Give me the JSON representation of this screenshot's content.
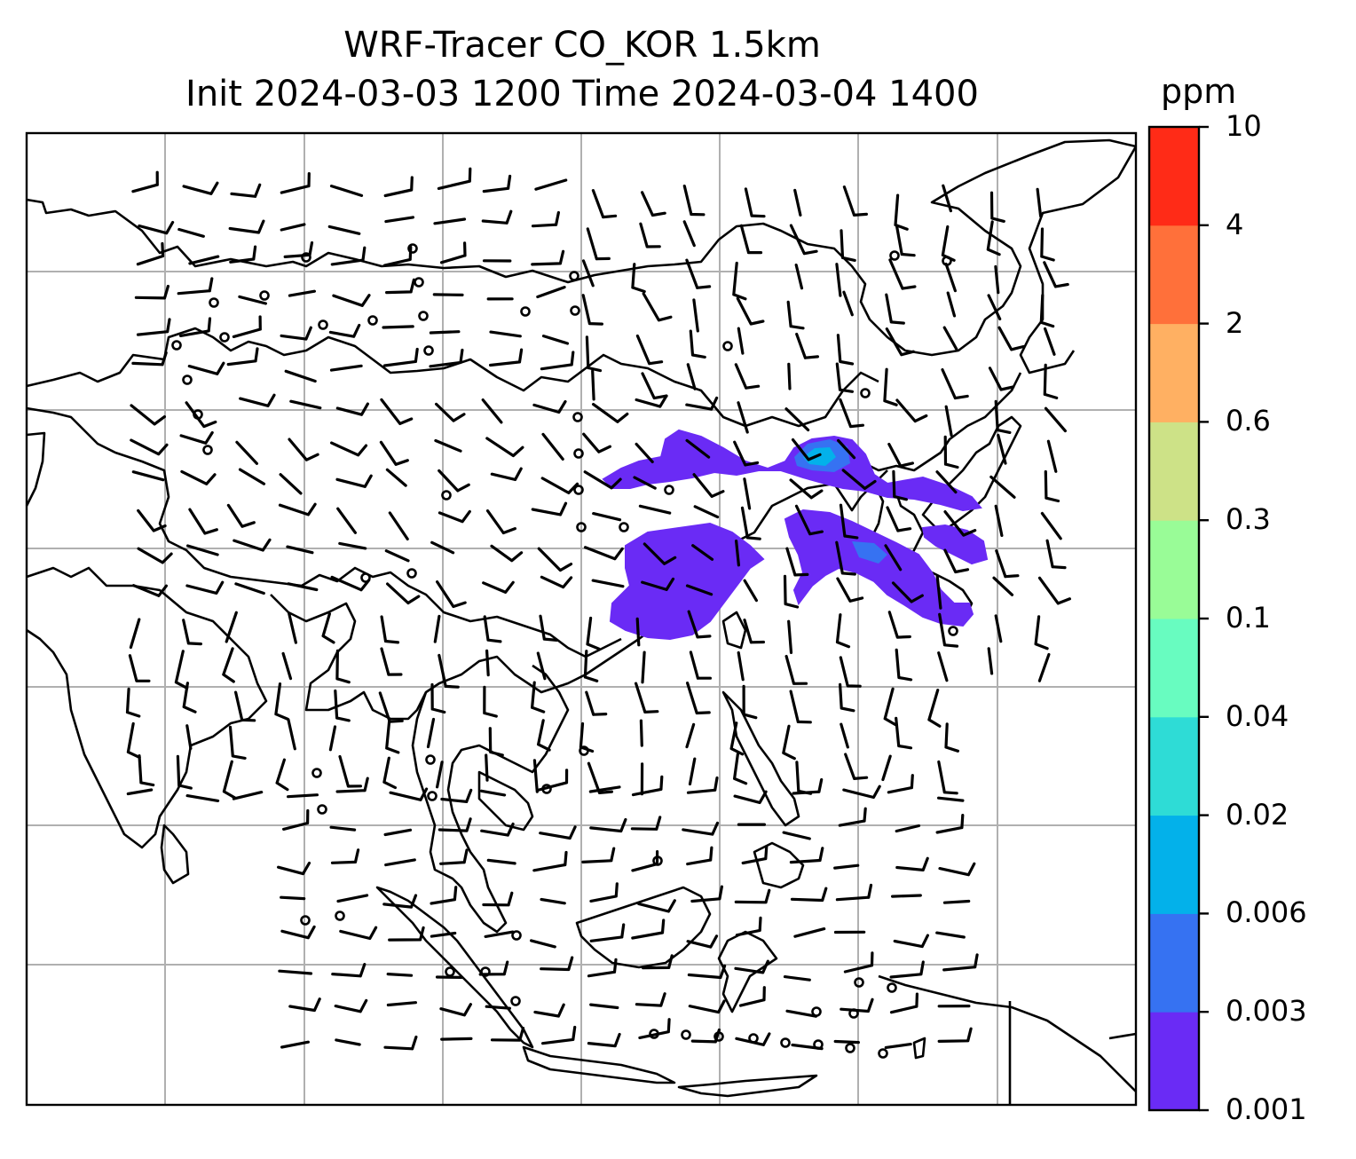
{
  "title": {
    "line1": "WRF-Tracer CO_KOR 1.5km",
    "line2": "Init 2024-03-03 1200 Time 2024-03-04 1400"
  },
  "colorbar": {
    "unit": "ppm",
    "tick_labels": [
      "0.001",
      "0.003",
      "0.006",
      "0.02",
      "0.04",
      "0.1",
      "0.3",
      "0.6",
      "2",
      "4",
      "10"
    ],
    "colors": [
      "#6a2bf5",
      "#3672f2",
      "#03b1ea",
      "#2edcd6",
      "#68fcc0",
      "#99fc97",
      "#cde287",
      "#ffb062",
      "#ff703a",
      "#ff2b17"
    ]
  },
  "map": {
    "gridlines": true,
    "coastline_color": "#000000",
    "gridline_color": "#b0b0b0",
    "wind_barbs": true,
    "plume_color": "#6a2bf5",
    "plume_edge_color": "#3672f2",
    "plume_core_color": "#03b1ea"
  }
}
